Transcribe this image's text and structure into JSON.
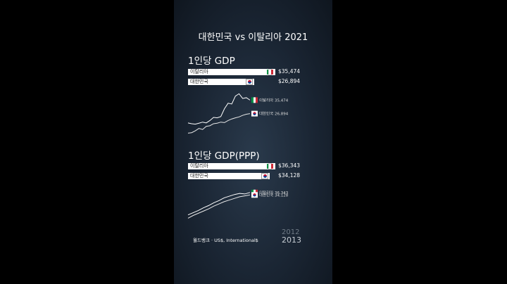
{
  "title": "대한민국 vs 이탈리아 2021",
  "source": "월드뱅크 · US$, International$",
  "years": {
    "previous": "2012",
    "current": "2013"
  },
  "colors": {
    "italy_green": "#009246",
    "italy_white": "#ffffff",
    "italy_red": "#ce2b37",
    "korea_red": "#c8102e",
    "korea_blue": "#0047a0"
  },
  "charts": [
    {
      "title": "1인당 GDP",
      "bars": [
        {
          "country": "이탈리아",
          "flag": "italy-flag-icon",
          "value": 35474,
          "value_label": "$35,474"
        },
        {
          "country": "대한민국",
          "flag": "korea-flag-icon",
          "value": 26894,
          "value_label": "$26,894"
        }
      ],
      "end_labels": [
        {
          "text": "이탈리아 35,474"
        },
        {
          "text": "대한민국 26,894"
        }
      ]
    },
    {
      "title": "1인당 GDP(PPP)",
      "bars": [
        {
          "country": "이탈리아",
          "flag": "italy-flag-icon",
          "value": 36343,
          "value_label": "$36,343"
        },
        {
          "country": "대한민국",
          "flag": "korea-flag-icon",
          "value": 34128,
          "value_label": "$34,128"
        }
      ],
      "end_labels": [
        {
          "text": "이탈리아 36,343"
        },
        {
          "text": "대한민국 34,128"
        }
      ]
    }
  ],
  "chart_data": [
    {
      "type": "line",
      "title": "1인당 GDP",
      "unit": "US$",
      "series": [
        {
          "name": "이탈리아",
          "values": [
            21000,
            20500,
            20200,
            20800,
            21500,
            21000,
            22500,
            24500,
            24200,
            25000,
            30000,
            33500,
            33000,
            38000,
            39500,
            36500,
            37000,
            35474
          ]
        },
        {
          "name": "대한민국",
          "values": [
            14500,
            14800,
            16000,
            17500,
            16800,
            18800,
            19200,
            20500,
            20800,
            21500,
            21200,
            22500,
            23500,
            24200,
            24800,
            25800,
            26500,
            26894
          ]
        }
      ]
    },
    {
      "type": "line",
      "title": "1인당 GDP(PPP)",
      "unit": "International$",
      "series": [
        {
          "name": "이탈리아",
          "values": [
            16000,
            18000,
            20000,
            22500,
            24500,
            27000,
            29000,
            31500,
            33000,
            34500,
            35500,
            35000,
            36343
          ]
        },
        {
          "name": "대한민국",
          "values": [
            13000,
            15500,
            17500,
            19500,
            21500,
            24000,
            26000,
            28000,
            29500,
            31000,
            32500,
            33300,
            34128
          ]
        }
      ]
    }
  ]
}
